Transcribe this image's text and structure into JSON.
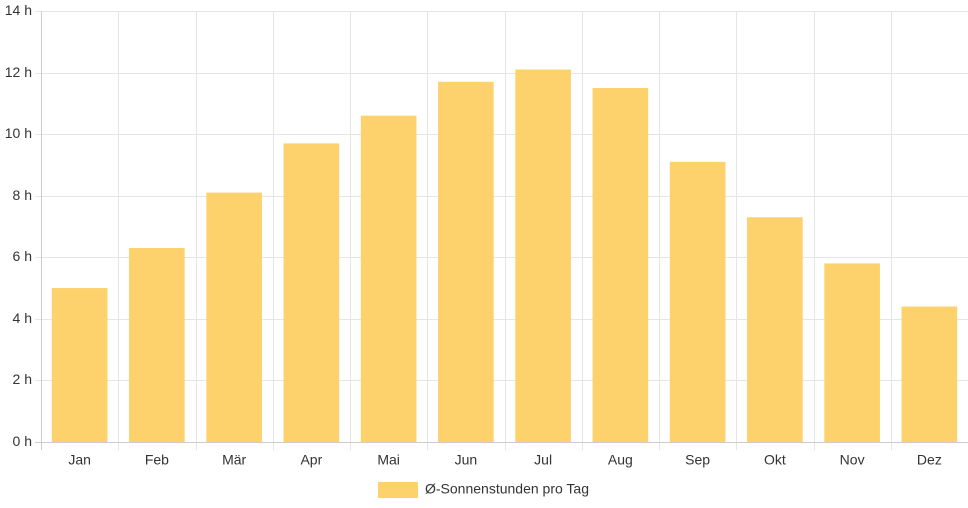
{
  "chart_data": {
    "type": "bar",
    "categories": [
      "Jan",
      "Feb",
      "Mär",
      "Apr",
      "Mai",
      "Jun",
      "Jul",
      "Aug",
      "Sep",
      "Okt",
      "Nov",
      "Dez"
    ],
    "series": [
      {
        "name": "Ø-Sonnenstunden pro Tag",
        "values": [
          5.0,
          6.3,
          8.1,
          9.7,
          10.6,
          11.7,
          12.1,
          11.5,
          9.1,
          7.3,
          5.8,
          4.4
        ],
        "color": "#fdd16b"
      }
    ],
    "ylim": [
      0,
      14
    ],
    "yticks": [
      0,
      2,
      4,
      6,
      8,
      10,
      12,
      14
    ],
    "ytick_labels": [
      "0 h",
      "2 h",
      "4 h",
      "6 h",
      "8 h",
      "10 h",
      "12 h",
      "14 h"
    ],
    "title": "",
    "xlabel": "",
    "ylabel": "",
    "grid": true,
    "legend_position": "bottom"
  }
}
